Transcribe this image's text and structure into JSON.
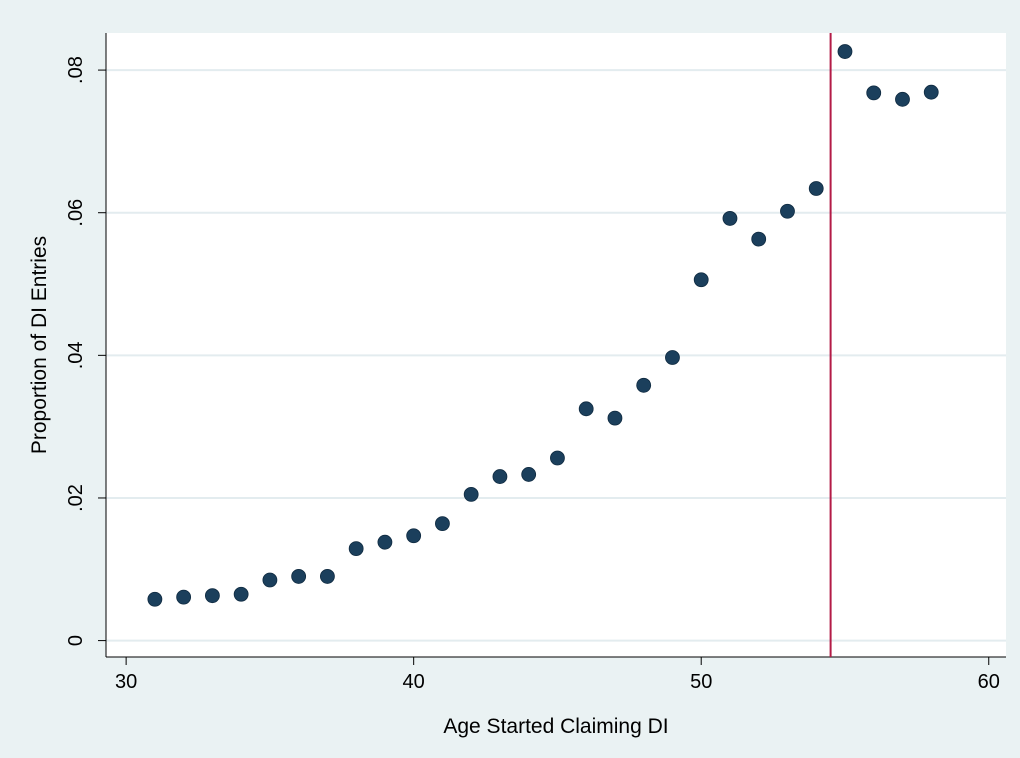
{
  "chart_data": {
    "type": "scatter",
    "xlabel": "Age Started Claiming DI",
    "ylabel": "Proportion of DI Entries",
    "xlim": [
      29.3,
      60.6
    ],
    "ylim": [
      -0.0023,
      0.0852
    ],
    "x_ticks": [
      30,
      40,
      50,
      60
    ],
    "x_tick_labels": [
      "30",
      "40",
      "50",
      "60"
    ],
    "y_ticks": [
      0,
      0.02,
      0.04,
      0.06,
      0.08
    ],
    "y_tick_labels": [
      "0",
      ".02",
      ".04",
      ".06",
      ".08"
    ],
    "grid": "horizontal",
    "legend": "none",
    "vertical_line": {
      "x": 54.5,
      "color": "#b31b47"
    },
    "marker_color": "#1b3f5c",
    "background_color": "#eaf2f3",
    "plot_background_color": "#ffffff",
    "points": [
      {
        "x": 31,
        "y": 0.0058
      },
      {
        "x": 32,
        "y": 0.0061
      },
      {
        "x": 33,
        "y": 0.0063
      },
      {
        "x": 34,
        "y": 0.0065
      },
      {
        "x": 35,
        "y": 0.0085
      },
      {
        "x": 36,
        "y": 0.009
      },
      {
        "x": 37,
        "y": 0.009
      },
      {
        "x": 38,
        "y": 0.0129
      },
      {
        "x": 39,
        "y": 0.0138
      },
      {
        "x": 40,
        "y": 0.0147
      },
      {
        "x": 41,
        "y": 0.0164
      },
      {
        "x": 42,
        "y": 0.0205
      },
      {
        "x": 43,
        "y": 0.023
      },
      {
        "x": 44,
        "y": 0.0233
      },
      {
        "x": 45,
        "y": 0.0256
      },
      {
        "x": 46,
        "y": 0.0325
      },
      {
        "x": 47,
        "y": 0.0312
      },
      {
        "x": 48,
        "y": 0.0358
      },
      {
        "x": 49,
        "y": 0.0397
      },
      {
        "x": 50,
        "y": 0.0506
      },
      {
        "x": 51,
        "y": 0.0592
      },
      {
        "x": 52,
        "y": 0.0563
      },
      {
        "x": 53,
        "y": 0.0602
      },
      {
        "x": 54,
        "y": 0.0634
      },
      {
        "x": 55,
        "y": 0.0826
      },
      {
        "x": 56,
        "y": 0.0768
      },
      {
        "x": 57,
        "y": 0.0759
      },
      {
        "x": 58,
        "y": 0.0769
      }
    ]
  }
}
